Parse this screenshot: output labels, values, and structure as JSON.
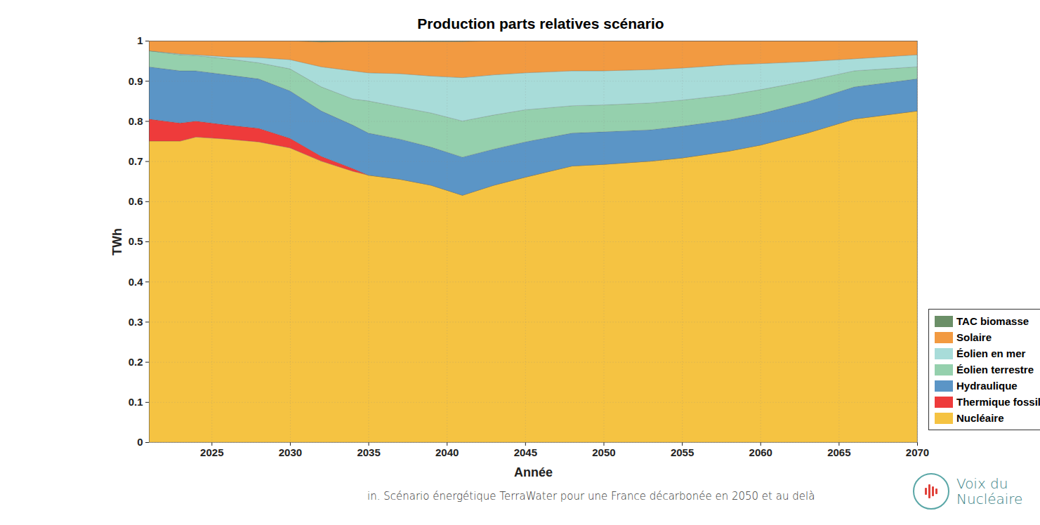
{
  "chart_data": {
    "type": "area",
    "stacked": true,
    "title": "Production parts relatives scénario",
    "x_label": "Année",
    "y_label": "TWh",
    "source": "in. Scénario énergétique TerraWater pour une France décarbonée en 2050 et au delà",
    "logo": [
      "Voix du",
      "Nucléaire"
    ],
    "legend": "bottom-right",
    "grid": true,
    "x": [
      2021,
      2023,
      2024,
      2026,
      2028,
      2030,
      2032,
      2034,
      2035,
      2037,
      2039,
      2041,
      2043,
      2045,
      2048,
      2050,
      2053,
      2055,
      2058,
      2060,
      2063,
      2066,
      2070
    ],
    "xlim": [
      2021,
      2070
    ],
    "xticks": [
      2025,
      2030,
      2035,
      2040,
      2045,
      2050,
      2055,
      2060,
      2065,
      2070
    ],
    "ylim": [
      0,
      1
    ],
    "yticks": [
      0,
      0.1,
      0.2,
      0.3,
      0.4,
      0.5,
      0.6,
      0.7,
      0.8,
      0.9,
      1
    ],
    "series": [
      {
        "name": "Nucléaire",
        "color": "#f5c342",
        "values": [
          0.75,
          0.75,
          0.76,
          0.755,
          0.748,
          0.733,
          0.7,
          0.675,
          0.665,
          0.655,
          0.64,
          0.615,
          0.64,
          0.66,
          0.688,
          0.692,
          0.7,
          0.708,
          0.725,
          0.74,
          0.77,
          0.805,
          0.825
        ]
      },
      {
        "name": "Thermique fossile",
        "color": "#ee3b3b",
        "values": [
          0.055,
          0.045,
          0.04,
          0.035,
          0.034,
          0.024,
          0.012,
          0.007,
          0,
          0,
          0,
          0,
          0,
          0,
          0,
          0,
          0,
          0,
          0,
          0,
          0,
          0,
          0
        ]
      },
      {
        "name": "Hydraulique",
        "color": "#5b95c6",
        "values": [
          0.13,
          0.13,
          0.125,
          0.125,
          0.123,
          0.118,
          0.113,
          0.108,
          0.105,
          0.1,
          0.095,
          0.095,
          0.09,
          0.088,
          0.082,
          0.081,
          0.078,
          0.079,
          0.078,
          0.078,
          0.078,
          0.08,
          0.08
        ]
      },
      {
        "name": "Éolien terrestre",
        "color": "#95d0ad",
        "values": [
          0.04,
          0.04,
          0.038,
          0.04,
          0.04,
          0.055,
          0.06,
          0.065,
          0.08,
          0.08,
          0.085,
          0.09,
          0.085,
          0.08,
          0.068,
          0.067,
          0.067,
          0.065,
          0.062,
          0.06,
          0.052,
          0.04,
          0.03
        ]
      },
      {
        "name": "Éolien en mer",
        "color": "#a8dcd9",
        "values": [
          0,
          0.002,
          0.002,
          0.005,
          0.013,
          0.023,
          0.05,
          0.07,
          0.07,
          0.083,
          0.092,
          0.108,
          0.1,
          0.092,
          0.087,
          0.085,
          0.083,
          0.08,
          0.075,
          0.065,
          0.048,
          0.03,
          0.03
        ]
      },
      {
        "name": "Solaire",
        "color": "#f29a41",
        "values": [
          0.025,
          0.033,
          0.035,
          0.04,
          0.042,
          0.047,
          0.062,
          0.073,
          0.078,
          0.08,
          0.086,
          0.09,
          0.085,
          0.08,
          0.075,
          0.075,
          0.072,
          0.068,
          0.06,
          0.057,
          0.052,
          0.045,
          0.035
        ]
      },
      {
        "name": "TAC biomasse",
        "color": "#6b8f67",
        "values": [
          0,
          0,
          0,
          0,
          0,
          0,
          0.003,
          0.002,
          0.002,
          0.002,
          0.002,
          0.002,
          0,
          0,
          0,
          0,
          0,
          0,
          0,
          0,
          0,
          0,
          0
        ]
      }
    ]
  }
}
